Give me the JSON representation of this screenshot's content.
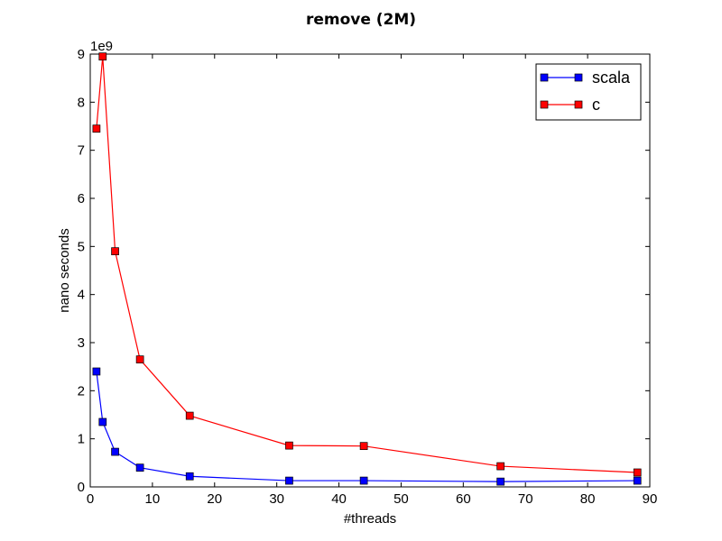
{
  "chart_data": {
    "type": "line",
    "title": "remove (2M)",
    "xlabel": "#threads",
    "ylabel": "nano seconds",
    "y_multiplier": "1e9",
    "xlim": [
      0,
      90
    ],
    "ylim": [
      0,
      9
    ],
    "xticks": [
      0,
      10,
      20,
      30,
      40,
      50,
      60,
      70,
      80,
      90
    ],
    "yticks": [
      0,
      1,
      2,
      3,
      4,
      5,
      6,
      7,
      8,
      9
    ],
    "grid": false,
    "legend": "top-right",
    "x": [
      1,
      2,
      4,
      8,
      16,
      32,
      44,
      66,
      88
    ],
    "series": [
      {
        "name": "scala",
        "color": "#0000ff",
        "marker": "square",
        "values": [
          2.4,
          1.35,
          0.73,
          0.4,
          0.22,
          0.13,
          0.13,
          0.11,
          0.13
        ]
      },
      {
        "name": "c",
        "color": "#ff0000",
        "marker": "square",
        "values": [
          7.45,
          8.95,
          4.9,
          2.65,
          1.48,
          0.86,
          0.85,
          0.43,
          0.3
        ]
      }
    ]
  }
}
